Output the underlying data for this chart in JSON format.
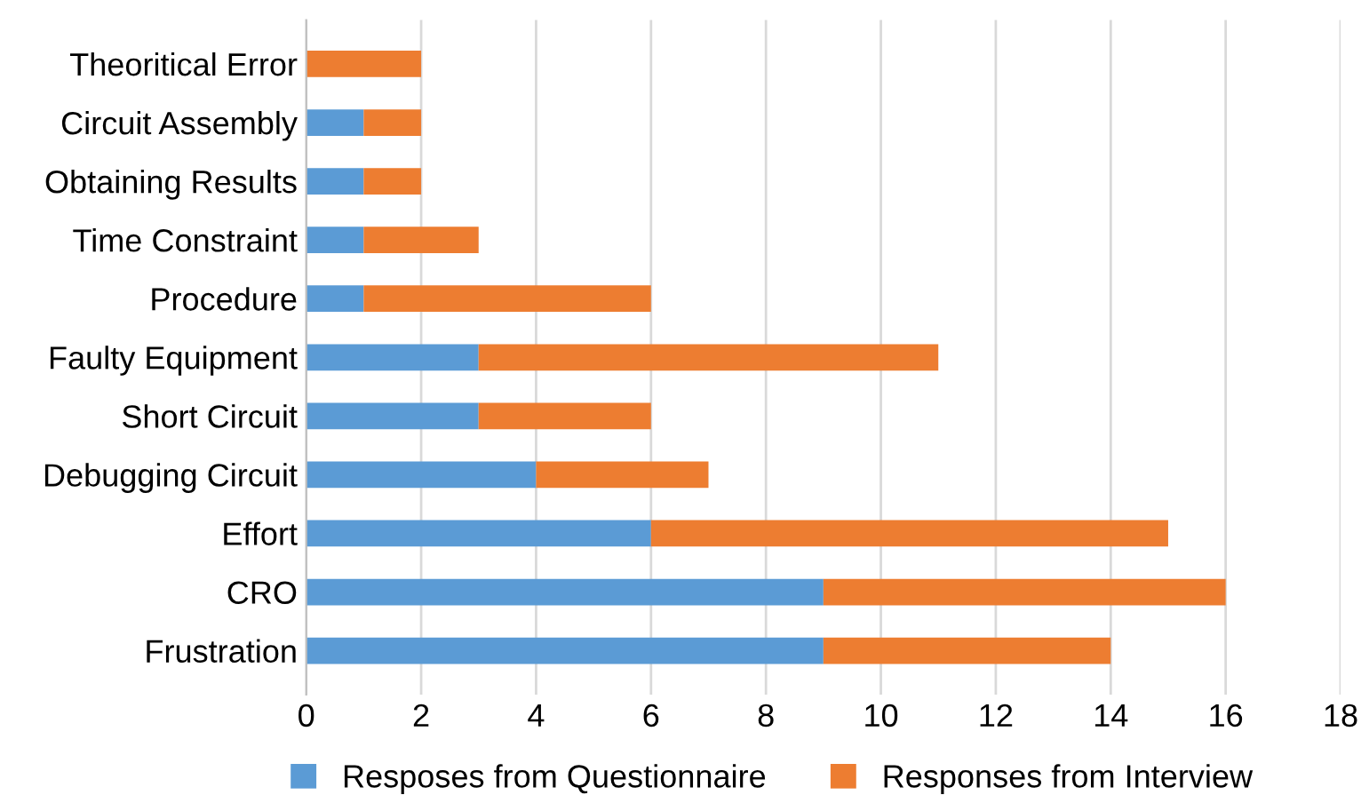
{
  "chart_data": {
    "type": "bar",
    "orientation": "horizontal",
    "stacked": true,
    "categories": [
      "Theoritical Error",
      "Circuit Assembly",
      "Obtaining Results",
      "Time Constraint",
      "Procedure",
      "Faulty Equipment",
      "Short Circuit",
      "Debugging Circuit",
      "Effort",
      "CRO",
      "Frustration"
    ],
    "series": [
      {
        "name": "Resposes from Questionnaire",
        "color": "#5b9bd5",
        "values": [
          0,
          1,
          1,
          1,
          1,
          3,
          3,
          4,
          6,
          9,
          9
        ]
      },
      {
        "name": "Responses from Interview",
        "color": "#ed7d31",
        "values": [
          2,
          1,
          1,
          2,
          5,
          8,
          3,
          3,
          9,
          7,
          5
        ]
      }
    ],
    "xlim": [
      0,
      18
    ],
    "xticks": [
      0,
      2,
      4,
      6,
      8,
      10,
      12,
      14,
      16,
      18
    ],
    "grid": "x",
    "legend": "bottom"
  }
}
